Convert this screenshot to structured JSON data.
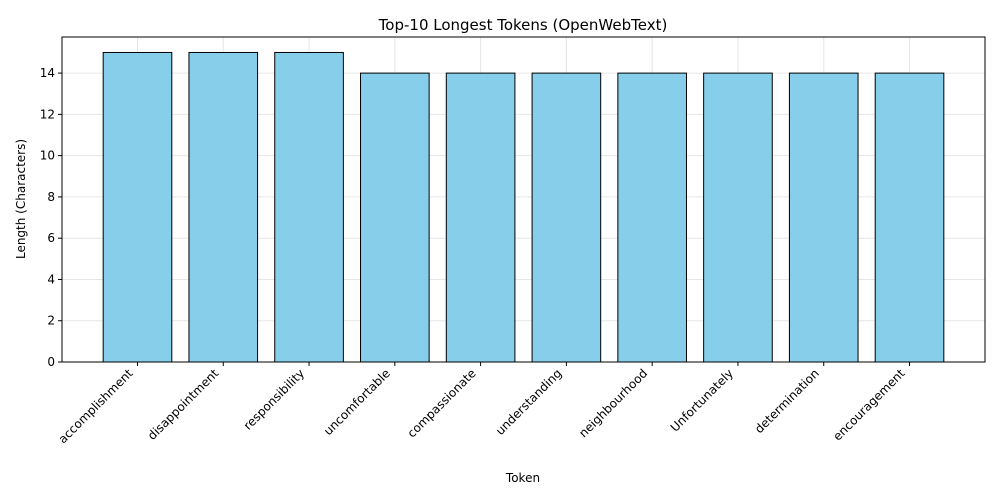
{
  "chart_data": {
    "type": "bar",
    "title": "Top-10 Longest Tokens (OpenWebText)",
    "xlabel": "Token",
    "ylabel": "Length (Characters)",
    "categories": [
      "accomplishment",
      "disappointment",
      "responsibility",
      "uncomfortable",
      "compassionate",
      "understanding",
      "neighbourhood",
      "Unfortunately",
      "determination",
      "encouragement"
    ],
    "values": [
      15,
      15,
      15,
      14,
      14,
      14,
      14,
      14,
      14,
      14
    ],
    "ylim": [
      0,
      15.75
    ],
    "yticks": [
      0,
      2,
      4,
      6,
      8,
      10,
      12,
      14
    ],
    "grid": true,
    "bar_color": "#87ceeb",
    "bar_edge_color": "#000000"
  }
}
